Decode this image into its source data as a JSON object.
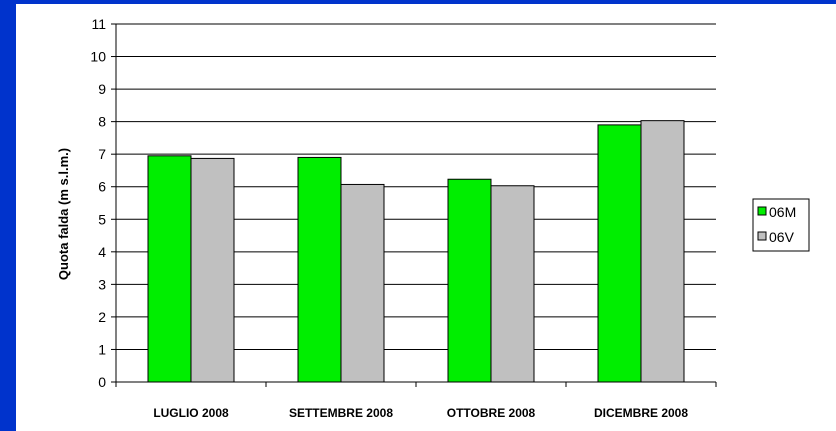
{
  "chart_data": {
    "type": "bar",
    "ylabel": "Quota falda (m s.l.m.)",
    "xlabel": "",
    "categories": [
      "LUGLIO 2008",
      "SETTEMBRE 2008",
      "OTTOBRE 2008",
      "DICEMBRE 2008"
    ],
    "series": [
      {
        "name": "06M",
        "color": "#00ee00",
        "values": [
          6.95,
          6.9,
          6.23,
          7.9
        ]
      },
      {
        "name": "06V",
        "color": "#c0c0c0",
        "values": [
          6.87,
          6.07,
          6.03,
          8.03
        ]
      }
    ],
    "ylim": [
      0,
      11
    ],
    "yticks": [
      0,
      1,
      2,
      3,
      4,
      5,
      6,
      7,
      8,
      9,
      10,
      11
    ],
    "grid": true,
    "legend": "right",
    "colors": {
      "background": "#0033cc",
      "plot_bg": "#ffffff"
    }
  }
}
